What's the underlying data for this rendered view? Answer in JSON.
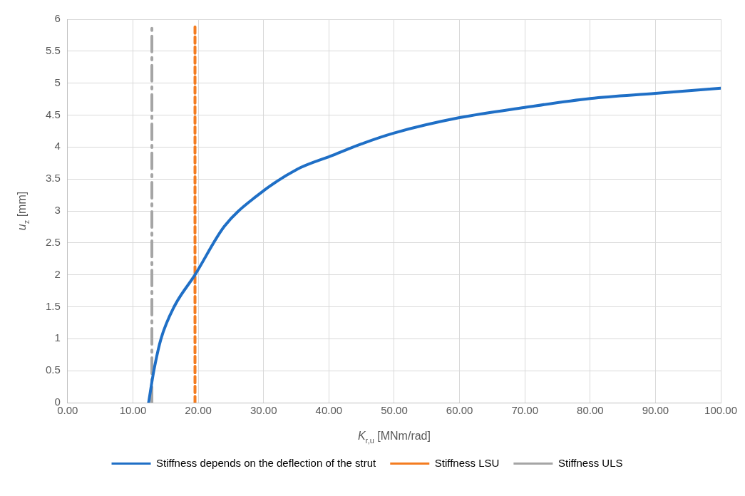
{
  "chart_data": {
    "type": "line",
    "xlabel": "K$_{r,u}$ [MNm/rad]",
    "ylabel": "u$_{z}$ [mm]",
    "xlim": [
      0,
      100
    ],
    "ylim": [
      0,
      6
    ],
    "xticks": [
      {
        "value": 0,
        "label": "0.00"
      },
      {
        "value": 10,
        "label": "10.00"
      },
      {
        "value": 20,
        "label": "20.00"
      },
      {
        "value": 30,
        "label": "30.00"
      },
      {
        "value": 40,
        "label": "40.00"
      },
      {
        "value": 50,
        "label": "50.00"
      },
      {
        "value": 60,
        "label": "60.00"
      },
      {
        "value": 70,
        "label": "70.00"
      },
      {
        "value": 80,
        "label": "80.00"
      },
      {
        "value": 90,
        "label": "90.00"
      },
      {
        "value": 100,
        "label": "100.00"
      }
    ],
    "yticks": [
      0,
      0.5,
      1,
      1.5,
      2,
      2.5,
      3,
      3.5,
      4,
      4.5,
      5,
      5.5,
      6
    ],
    "grid": true,
    "legend": "bottom",
    "marker": "none",
    "series": [
      {
        "name": "Stiffness depends on the deflection of the strut",
        "color": "#1f6fc6",
        "line_style": "solid",
        "x": [
          12.4,
          13.2,
          14.3,
          16.3,
          19.5,
          24,
          28.9,
          35.1,
          40.3,
          45,
          50,
          60,
          70,
          80,
          90,
          100
        ],
        "values": [
          0,
          0.5,
          1,
          1.5,
          2,
          2.76,
          3.23,
          3.65,
          3.86,
          4.05,
          4.22,
          4.46,
          4.62,
          4.76,
          4.84,
          4.92
        ]
      },
      {
        "name": "Stiffness LSU",
        "color": "#f47c20",
        "line_style": "dashed",
        "x": [
          19.5,
          19.5
        ],
        "values": [
          0,
          5.9
        ]
      },
      {
        "name": "Stiffness ULS",
        "color": "#a5a5a5",
        "line_style": "dashdot",
        "x": [
          12.9,
          12.9
        ],
        "values": [
          0,
          5.9
        ]
      }
    ]
  }
}
